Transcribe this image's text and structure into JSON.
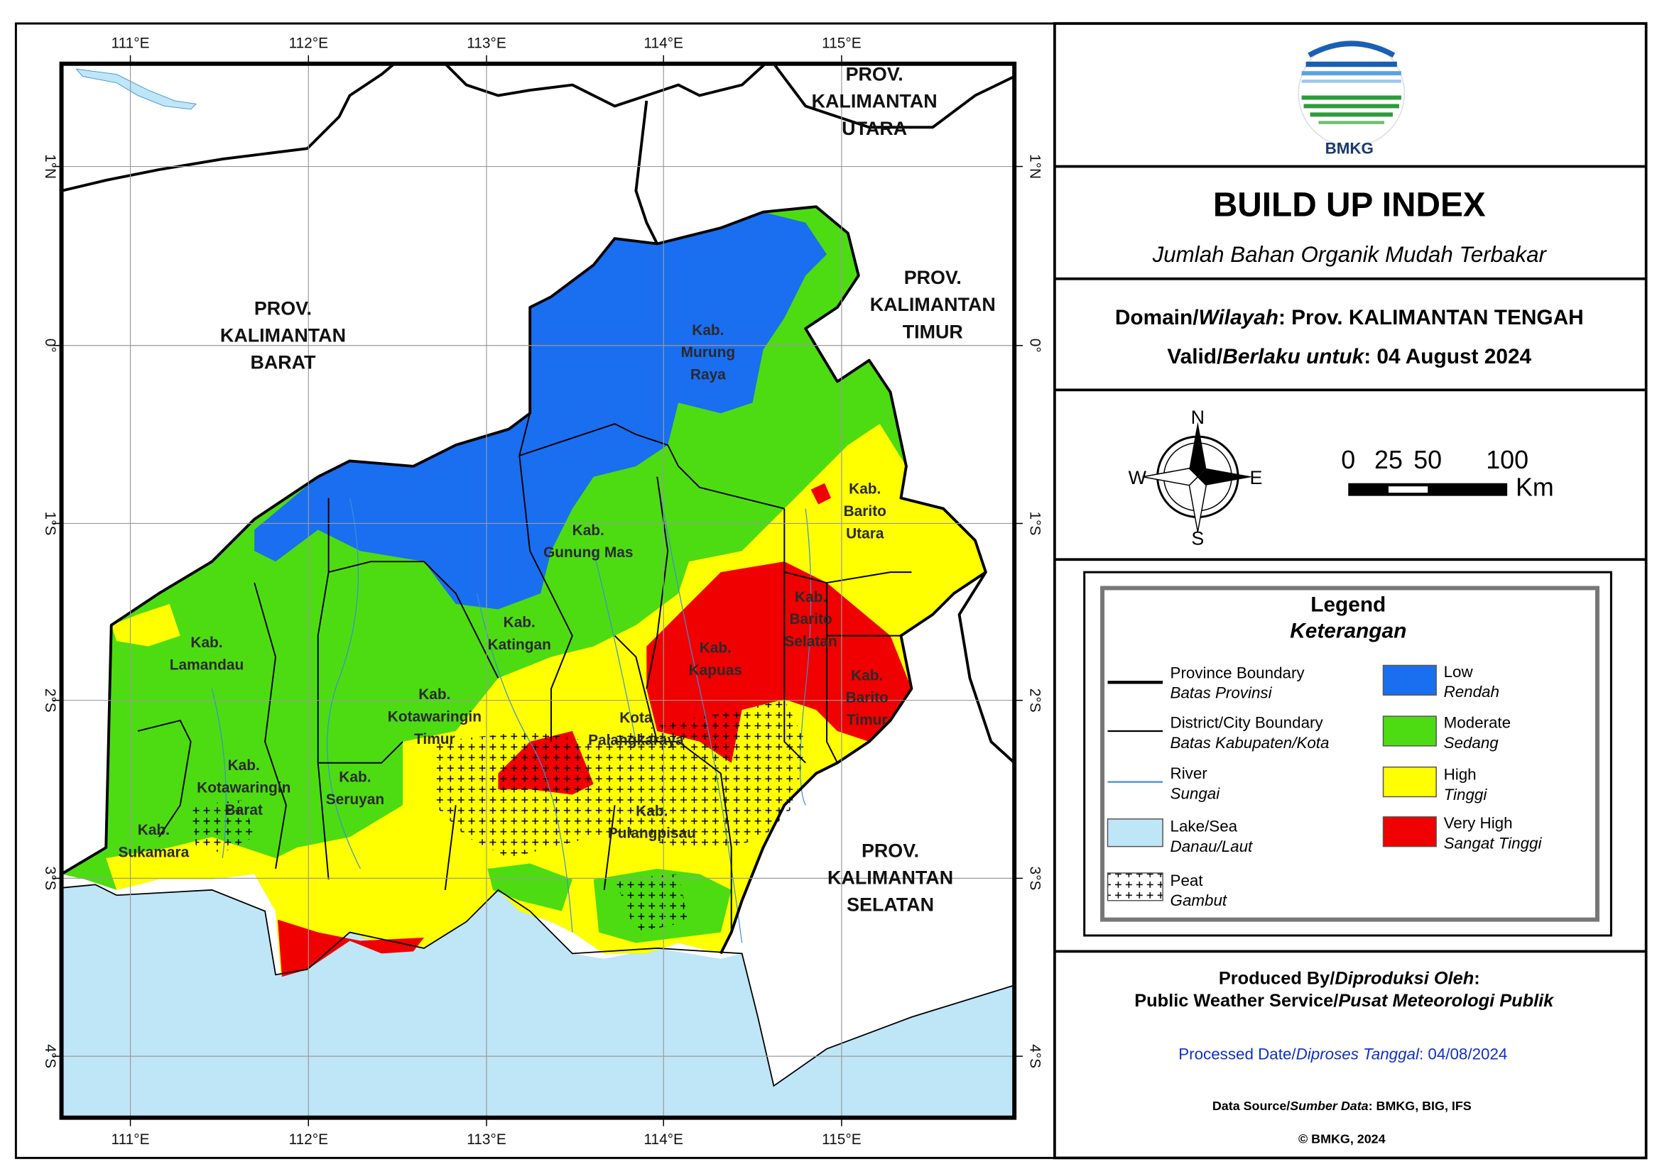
{
  "map": {
    "lon_labels": [
      "111°E",
      "112°E",
      "113°E",
      "114°E",
      "115°E"
    ],
    "lat_labels": [
      "1°N",
      "0°",
      "1°S",
      "2°S",
      "3°S",
      "4°S"
    ],
    "province_labels": [
      [
        "PROV.",
        "KALIMANTAN",
        "UTARA"
      ],
      [
        "PROV.",
        "KALIMANTAN",
        "BARAT"
      ],
      [
        "PROV.",
        "KALIMANTAN",
        "TIMUR"
      ],
      [
        "PROV.",
        "KALIMANTAN",
        "SELATAN"
      ]
    ],
    "district_labels": [
      [
        "Kab.",
        "Murung",
        "Raya"
      ],
      [
        "Kab.",
        "Barito",
        "Utara"
      ],
      [
        "Kab.",
        "Gunung Mas"
      ],
      [
        "Kab.",
        "Katingan"
      ],
      [
        "Kab.",
        "Barito",
        "Selatan"
      ],
      [
        "Kab.",
        "Lamandau"
      ],
      [
        "Kab.",
        "Kapuas"
      ],
      [
        "Kab.",
        "Barito",
        "Timur"
      ],
      [
        "Kab.",
        "Kotawaringin",
        "Timur"
      ],
      [
        "Kota",
        "Palangkaraya"
      ],
      [
        "Kab.",
        "Kotawaringin",
        "Barat"
      ],
      [
        "Kab.",
        "Seruyan"
      ],
      [
        "Kab.",
        "Pulangpisau"
      ],
      [
        "Kab.",
        "Sukamara"
      ]
    ]
  },
  "header": {
    "logo_text": "BMKG",
    "title": "BUILD UP INDEX",
    "subtitle": "Jumlah Bahan Organik Mudah Terbakar"
  },
  "domain": {
    "parts": [
      "Domain/",
      "Wilayah",
      ": Prov. KALIMANTAN TENGAH"
    ]
  },
  "valid": {
    "parts": [
      "Valid/",
      "Berlaku untuk",
      ": 04 August 2024"
    ]
  },
  "compass": {
    "n": "N",
    "e": "E",
    "s": "S",
    "w": "W"
  },
  "scale": {
    "labels": [
      "0",
      "25",
      "50",
      "100"
    ],
    "unit": "Km"
  },
  "legend": {
    "title": "Legend",
    "subtitle": "Keterangan",
    "items": [
      {
        "label": "Province Boundary",
        "sublabel": "Batas Provinsi"
      },
      {
        "label": "District/City Boundary",
        "sublabel": "Batas Kabupaten/Kota"
      },
      {
        "label": "River",
        "sublabel": "Sungai"
      },
      {
        "label": "Lake/Sea",
        "sublabel": "Danau/Laut"
      },
      {
        "label": "Peat",
        "sublabel": "Gambut"
      },
      {
        "label": "Low",
        "sublabel": "Rendah"
      },
      {
        "label": "Moderate",
        "sublabel": "Sedang"
      },
      {
        "label": "High",
        "sublabel": "Tinggi"
      },
      {
        "label": "Very High",
        "sublabel": "Sangat Tinggi"
      }
    ]
  },
  "footer": {
    "produced": [
      "Produced By/",
      "Diproduksi Oleh",
      ":"
    ],
    "service": [
      "Public Weather Service/",
      "Pusat Meteorologi Publik"
    ],
    "processed": [
      "Processed Date/",
      "Diproses Tanggal",
      ": 04/08/2024"
    ],
    "source": [
      "Data Source/",
      "Sumber Data",
      ": BMKG, BIG, IFS"
    ],
    "copyright": "© BMKG, 2024"
  }
}
